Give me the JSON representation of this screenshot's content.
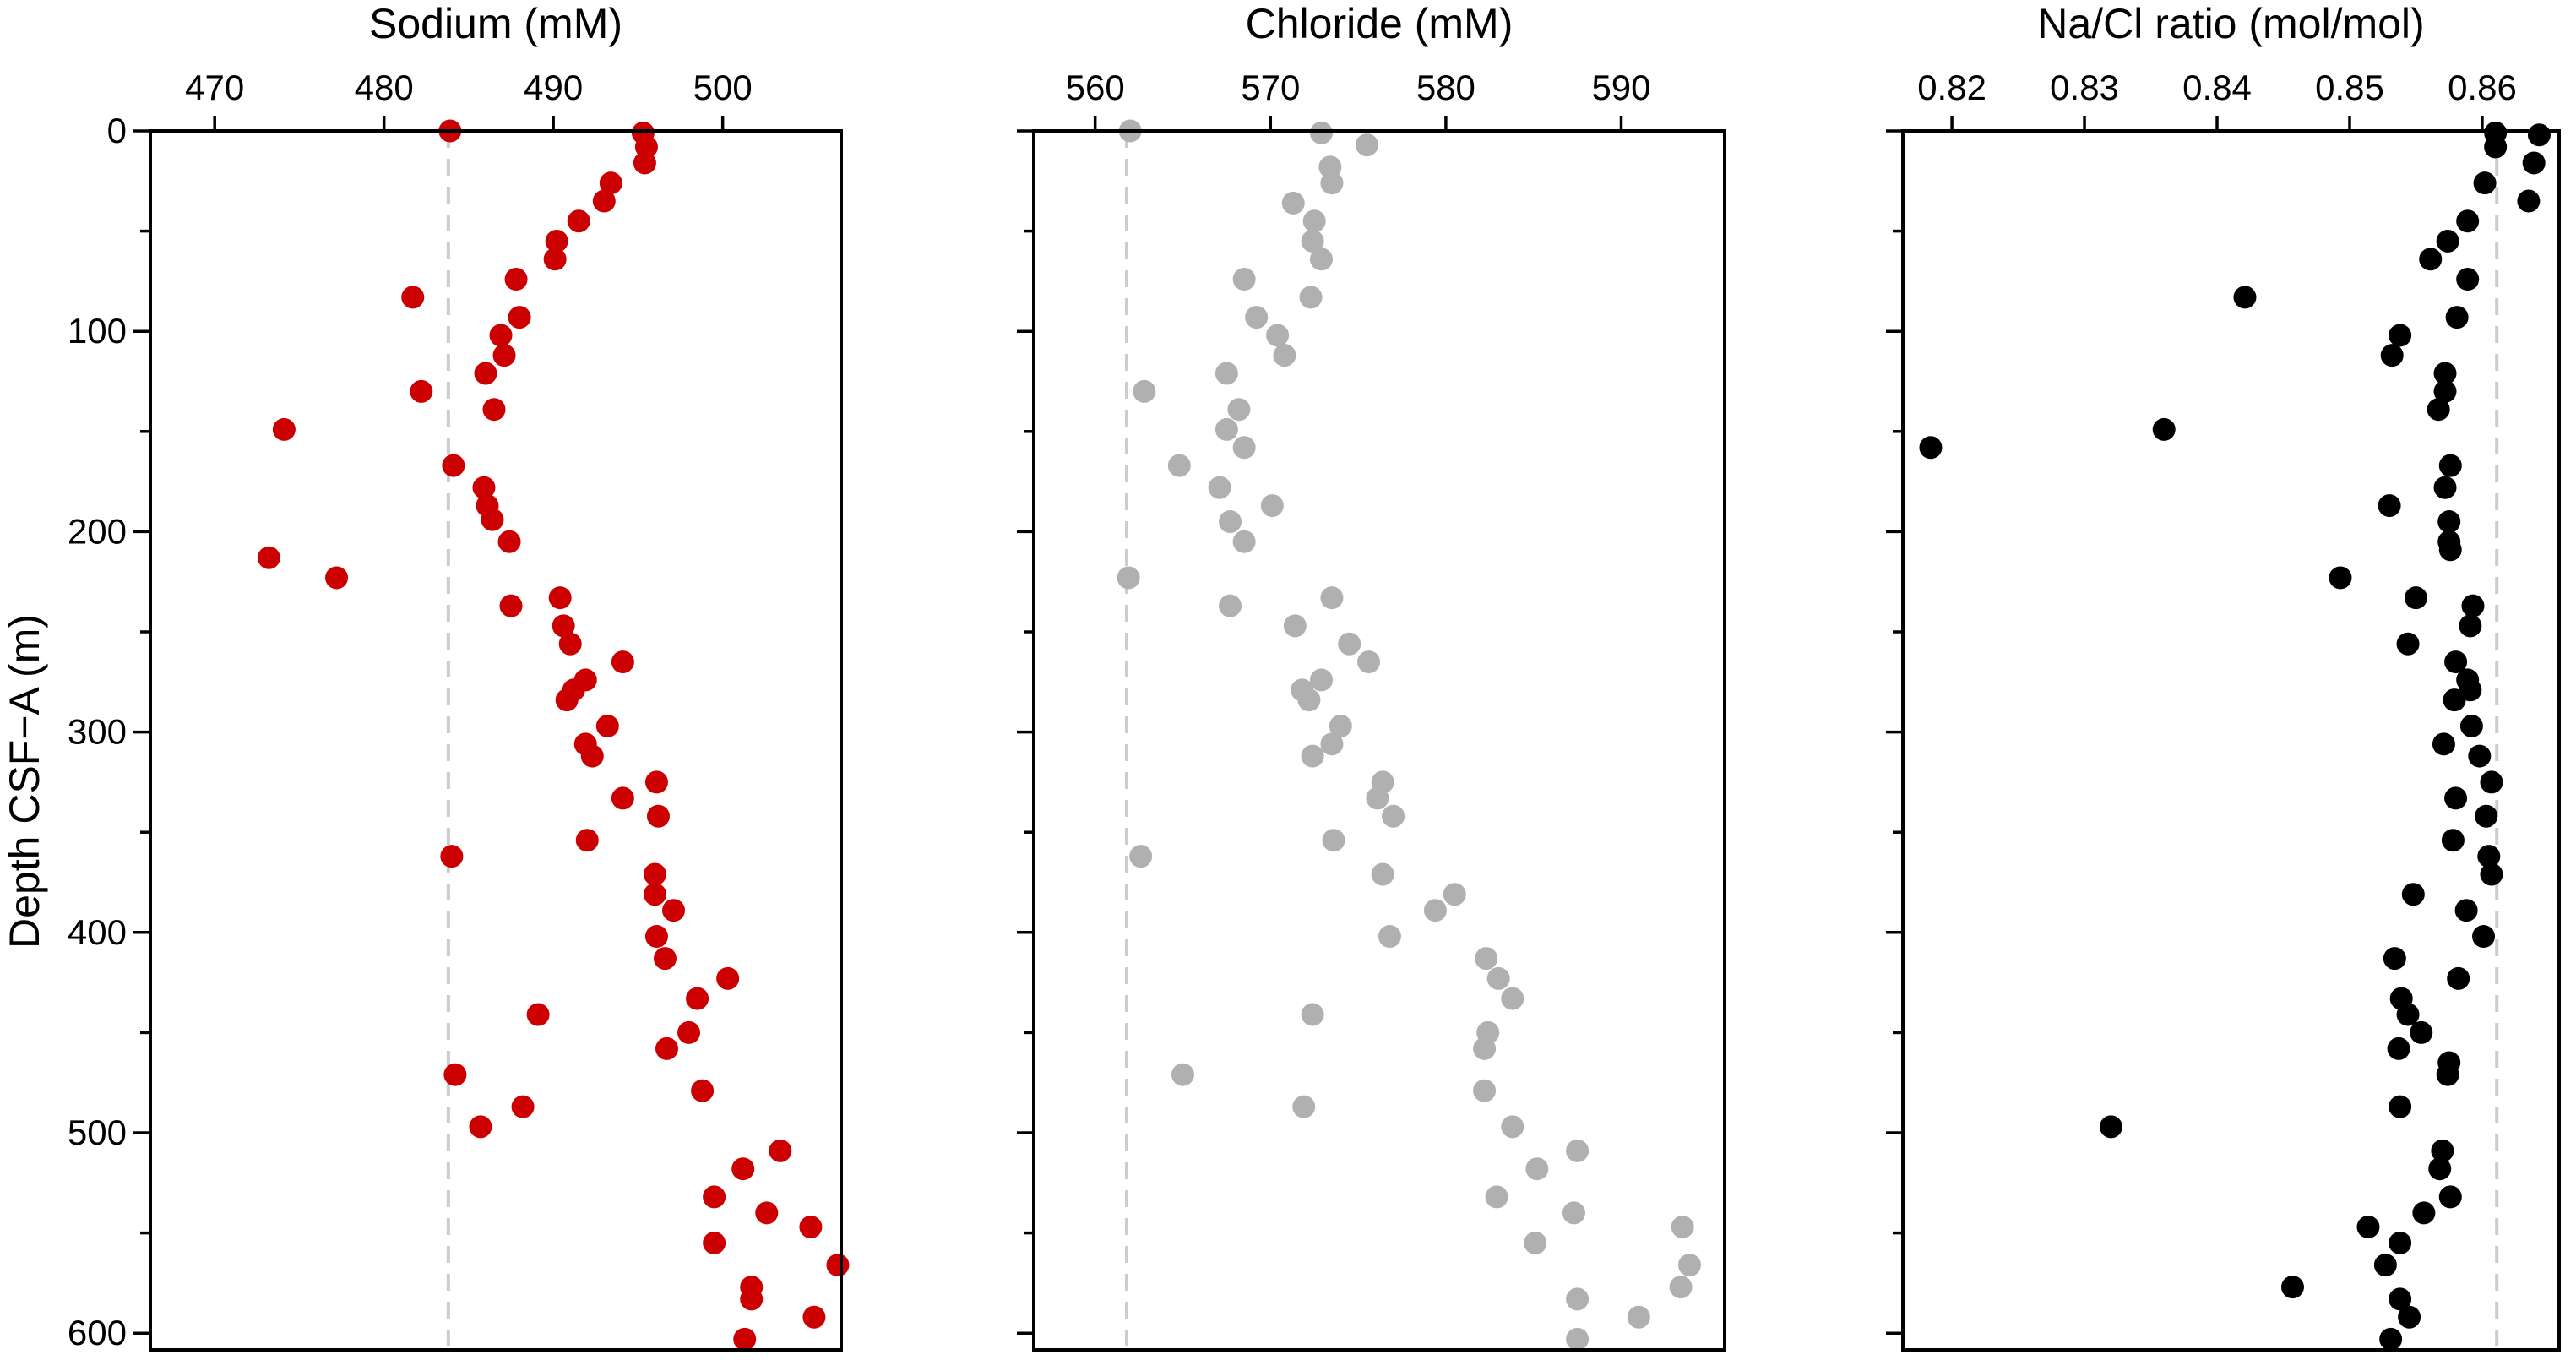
{
  "chart_data": [
    {
      "type": "scatter",
      "title": "Sodium (mM)",
      "ylabel": "Depth CSF−A (m)",
      "x_axis_position": "top",
      "y_axis_inverted": true,
      "xlim": [
        466.2,
        507.0
      ],
      "ylim": [
        0,
        610
      ],
      "xticks": [
        470,
        480,
        490,
        500
      ],
      "xtick_labels": [
        "470",
        "480",
        "490",
        "500"
      ],
      "yticks": [
        0,
        100,
        200,
        300,
        400,
        500,
        600
      ],
      "ytick_labels": [
        "0",
        "100",
        "200",
        "300",
        "400",
        "500",
        "600"
      ],
      "grid": false,
      "legend": "none",
      "marker_color": "#cc0000",
      "reference_line": {
        "x": 483.8,
        "color": "#cccccc",
        "style": "dashed"
      },
      "points": [
        {
          "x": 483.9,
          "y": 0
        },
        {
          "x": 495.3,
          "y": 1
        },
        {
          "x": 495.5,
          "y": 8
        },
        {
          "x": 495.4,
          "y": 16
        },
        {
          "x": 493.4,
          "y": 26
        },
        {
          "x": 493.0,
          "y": 35
        },
        {
          "x": 491.5,
          "y": 45
        },
        {
          "x": 490.2,
          "y": 55
        },
        {
          "x": 490.1,
          "y": 64
        },
        {
          "x": 487.8,
          "y": 74
        },
        {
          "x": 481.7,
          "y": 83
        },
        {
          "x": 488.0,
          "y": 93
        },
        {
          "x": 486.9,
          "y": 102
        },
        {
          "x": 487.1,
          "y": 112
        },
        {
          "x": 486.0,
          "y": 121
        },
        {
          "x": 482.2,
          "y": 130
        },
        {
          "x": 486.5,
          "y": 139
        },
        {
          "x": 474.1,
          "y": 149
        },
        {
          "x": 484.1,
          "y": 167
        },
        {
          "x": 485.9,
          "y": 178
        },
        {
          "x": 486.1,
          "y": 187
        },
        {
          "x": 486.4,
          "y": 194
        },
        {
          "x": 487.4,
          "y": 205
        },
        {
          "x": 473.2,
          "y": 213
        },
        {
          "x": 477.2,
          "y": 223
        },
        {
          "x": 490.4,
          "y": 233
        },
        {
          "x": 487.5,
          "y": 237
        },
        {
          "x": 490.6,
          "y": 247
        },
        {
          "x": 491.0,
          "y": 256
        },
        {
          "x": 494.1,
          "y": 265
        },
        {
          "x": 491.9,
          "y": 274
        },
        {
          "x": 491.2,
          "y": 279
        },
        {
          "x": 490.8,
          "y": 284
        },
        {
          "x": 493.2,
          "y": 297
        },
        {
          "x": 491.9,
          "y": 306
        },
        {
          "x": 492.3,
          "y": 312
        },
        {
          "x": 496.1,
          "y": 325
        },
        {
          "x": 494.1,
          "y": 333
        },
        {
          "x": 496.2,
          "y": 342
        },
        {
          "x": 492.0,
          "y": 354
        },
        {
          "x": 484.0,
          "y": 362
        },
        {
          "x": 496.0,
          "y": 371
        },
        {
          "x": 496.0,
          "y": 381
        },
        {
          "x": 497.1,
          "y": 389
        },
        {
          "x": 496.1,
          "y": 402
        },
        {
          "x": 496.6,
          "y": 413
        },
        {
          "x": 500.3,
          "y": 423
        },
        {
          "x": 498.5,
          "y": 433
        },
        {
          "x": 489.1,
          "y": 441
        },
        {
          "x": 498.0,
          "y": 450
        },
        {
          "x": 496.7,
          "y": 458
        },
        {
          "x": 484.2,
          "y": 471
        },
        {
          "x": 498.8,
          "y": 479
        },
        {
          "x": 488.2,
          "y": 487
        },
        {
          "x": 485.7,
          "y": 497
        },
        {
          "x": 503.4,
          "y": 509
        },
        {
          "x": 501.2,
          "y": 518
        },
        {
          "x": 499.5,
          "y": 532
        },
        {
          "x": 502.6,
          "y": 540
        },
        {
          "x": 505.2,
          "y": 547
        },
        {
          "x": 499.5,
          "y": 555
        },
        {
          "x": 506.8,
          "y": 566
        },
        {
          "x": 501.7,
          "y": 577
        },
        {
          "x": 501.7,
          "y": 583
        },
        {
          "x": 505.4,
          "y": 592
        },
        {
          "x": 501.3,
          "y": 603
        }
      ]
    },
    {
      "type": "scatter",
      "title": "Chloride (mM)",
      "y_axis_inverted": true,
      "xlim": [
        556.5,
        595.9
      ],
      "ylim": [
        0,
        610
      ],
      "xticks": [
        560,
        570,
        580,
        590
      ],
      "xtick_labels": [
        "560",
        "570",
        "580",
        "590"
      ],
      "yticks": [
        0,
        100,
        200,
        300,
        400,
        500,
        600
      ],
      "grid": false,
      "legend": "none",
      "marker_color": "#b0b0b0",
      "reference_line": {
        "x": 561.8,
        "color": "#cccccc",
        "style": "dashed"
      },
      "points": [
        {
          "x": 562.0,
          "y": 0
        },
        {
          "x": 572.9,
          "y": 1
        },
        {
          "x": 575.5,
          "y": 7
        },
        {
          "x": 573.4,
          "y": 18
        },
        {
          "x": 573.5,
          "y": 26
        },
        {
          "x": 571.3,
          "y": 36
        },
        {
          "x": 572.5,
          "y": 45
        },
        {
          "x": 572.4,
          "y": 55
        },
        {
          "x": 572.9,
          "y": 64
        },
        {
          "x": 568.5,
          "y": 74
        },
        {
          "x": 572.3,
          "y": 83
        },
        {
          "x": 569.2,
          "y": 93
        },
        {
          "x": 570.4,
          "y": 102
        },
        {
          "x": 570.8,
          "y": 112
        },
        {
          "x": 567.5,
          "y": 121
        },
        {
          "x": 562.8,
          "y": 130
        },
        {
          "x": 568.2,
          "y": 139
        },
        {
          "x": 567.5,
          "y": 149
        },
        {
          "x": 568.5,
          "y": 158
        },
        {
          "x": 564.8,
          "y": 167
        },
        {
          "x": 567.1,
          "y": 178
        },
        {
          "x": 570.1,
          "y": 187
        },
        {
          "x": 567.7,
          "y": 195
        },
        {
          "x": 568.5,
          "y": 205
        },
        {
          "x": 561.9,
          "y": 223
        },
        {
          "x": 573.5,
          "y": 233
        },
        {
          "x": 567.7,
          "y": 237
        },
        {
          "x": 571.4,
          "y": 247
        },
        {
          "x": 574.5,
          "y": 256
        },
        {
          "x": 575.6,
          "y": 265
        },
        {
          "x": 572.9,
          "y": 274
        },
        {
          "x": 571.8,
          "y": 279
        },
        {
          "x": 572.2,
          "y": 284
        },
        {
          "x": 574.0,
          "y": 297
        },
        {
          "x": 573.5,
          "y": 306
        },
        {
          "x": 572.4,
          "y": 312
        },
        {
          "x": 576.4,
          "y": 325
        },
        {
          "x": 576.1,
          "y": 333
        },
        {
          "x": 577.0,
          "y": 342
        },
        {
          "x": 573.6,
          "y": 354
        },
        {
          "x": 562.6,
          "y": 362
        },
        {
          "x": 576.4,
          "y": 371
        },
        {
          "x": 580.5,
          "y": 381
        },
        {
          "x": 579.4,
          "y": 389
        },
        {
          "x": 576.8,
          "y": 402
        },
        {
          "x": 582.3,
          "y": 413
        },
        {
          "x": 583.0,
          "y": 423
        },
        {
          "x": 583.8,
          "y": 433
        },
        {
          "x": 572.4,
          "y": 441
        },
        {
          "x": 582.4,
          "y": 450
        },
        {
          "x": 582.2,
          "y": 458
        },
        {
          "x": 565.0,
          "y": 471
        },
        {
          "x": 582.2,
          "y": 479
        },
        {
          "x": 571.9,
          "y": 487
        },
        {
          "x": 583.8,
          "y": 497
        },
        {
          "x": 587.5,
          "y": 509
        },
        {
          "x": 585.2,
          "y": 518
        },
        {
          "x": 582.9,
          "y": 532
        },
        {
          "x": 587.3,
          "y": 540
        },
        {
          "x": 593.5,
          "y": 547
        },
        {
          "x": 585.1,
          "y": 555
        },
        {
          "x": 593.9,
          "y": 566
        },
        {
          "x": 593.4,
          "y": 577
        },
        {
          "x": 587.5,
          "y": 583
        },
        {
          "x": 591.0,
          "y": 592
        },
        {
          "x": 587.5,
          "y": 603
        }
      ]
    },
    {
      "type": "scatter",
      "title": "Na/Cl ratio (mol/mol)",
      "y_axis_inverted": true,
      "xlim": [
        0.8163,
        0.8658
      ],
      "ylim": [
        0,
        610
      ],
      "xticks": [
        0.82,
        0.83,
        0.84,
        0.85,
        0.86
      ],
      "xtick_labels": [
        "0.82",
        "0.83",
        "0.84",
        "0.85",
        "0.86"
      ],
      "yticks": [
        0,
        100,
        200,
        300,
        400,
        500,
        600
      ],
      "grid": false,
      "legend": "none",
      "marker_color": "#000000",
      "reference_line": {
        "x": 0.8611,
        "color": "#cccccc",
        "style": "dashed"
      },
      "points": [
        {
          "x": 0.861,
          "y": 1
        },
        {
          "x": 0.8643,
          "y": 2
        },
        {
          "x": 0.861,
          "y": 8
        },
        {
          "x": 0.8639,
          "y": 16
        },
        {
          "x": 0.8635,
          "y": 35
        },
        {
          "x": 0.8602,
          "y": 26
        },
        {
          "x": 0.8589,
          "y": 45
        },
        {
          "x": 0.8574,
          "y": 55
        },
        {
          "x": 0.8561,
          "y": 64
        },
        {
          "x": 0.8589,
          "y": 74
        },
        {
          "x": 0.8421,
          "y": 83
        },
        {
          "x": 0.8581,
          "y": 93
        },
        {
          "x": 0.8538,
          "y": 102
        },
        {
          "x": 0.8532,
          "y": 112
        },
        {
          "x": 0.8572,
          "y": 121
        },
        {
          "x": 0.8572,
          "y": 130
        },
        {
          "x": 0.8567,
          "y": 139
        },
        {
          "x": 0.836,
          "y": 149
        },
        {
          "x": 0.8184,
          "y": 158
        },
        {
          "x": 0.8576,
          "y": 167
        },
        {
          "x": 0.8572,
          "y": 178
        },
        {
          "x": 0.853,
          "y": 187
        },
        {
          "x": 0.8575,
          "y": 195
        },
        {
          "x": 0.8575,
          "y": 205
        },
        {
          "x": 0.8576,
          "y": 209
        },
        {
          "x": 0.8493,
          "y": 223
        },
        {
          "x": 0.855,
          "y": 233
        },
        {
          "x": 0.8593,
          "y": 237
        },
        {
          "x": 0.8591,
          "y": 247
        },
        {
          "x": 0.8544,
          "y": 256
        },
        {
          "x": 0.858,
          "y": 265
        },
        {
          "x": 0.8589,
          "y": 274
        },
        {
          "x": 0.8591,
          "y": 279
        },
        {
          "x": 0.8579,
          "y": 284
        },
        {
          "x": 0.8592,
          "y": 297
        },
        {
          "x": 0.8571,
          "y": 306
        },
        {
          "x": 0.8598,
          "y": 312
        },
        {
          "x": 0.8607,
          "y": 325
        },
        {
          "x": 0.858,
          "y": 333
        },
        {
          "x": 0.8603,
          "y": 342
        },
        {
          "x": 0.8578,
          "y": 354
        },
        {
          "x": 0.8605,
          "y": 362
        },
        {
          "x": 0.8607,
          "y": 371
        },
        {
          "x": 0.8548,
          "y": 381
        },
        {
          "x": 0.8588,
          "y": 389
        },
        {
          "x": 0.8601,
          "y": 402
        },
        {
          "x": 0.8534,
          "y": 413
        },
        {
          "x": 0.8582,
          "y": 423
        },
        {
          "x": 0.8539,
          "y": 433
        },
        {
          "x": 0.8544,
          "y": 441
        },
        {
          "x": 0.8554,
          "y": 450
        },
        {
          "x": 0.8537,
          "y": 458
        },
        {
          "x": 0.8575,
          "y": 465
        },
        {
          "x": 0.8574,
          "y": 471
        },
        {
          "x": 0.8538,
          "y": 487
        },
        {
          "x": 0.832,
          "y": 497
        },
        {
          "x": 0.857,
          "y": 509
        },
        {
          "x": 0.8568,
          "y": 518
        },
        {
          "x": 0.8576,
          "y": 532
        },
        {
          "x": 0.8556,
          "y": 540
        },
        {
          "x": 0.8514,
          "y": 547
        },
        {
          "x": 0.8538,
          "y": 555
        },
        {
          "x": 0.8527,
          "y": 566
        },
        {
          "x": 0.8457,
          "y": 577
        },
        {
          "x": 0.8538,
          "y": 583
        },
        {
          "x": 0.8545,
          "y": 592
        },
        {
          "x": 0.8531,
          "y": 603
        }
      ]
    }
  ]
}
